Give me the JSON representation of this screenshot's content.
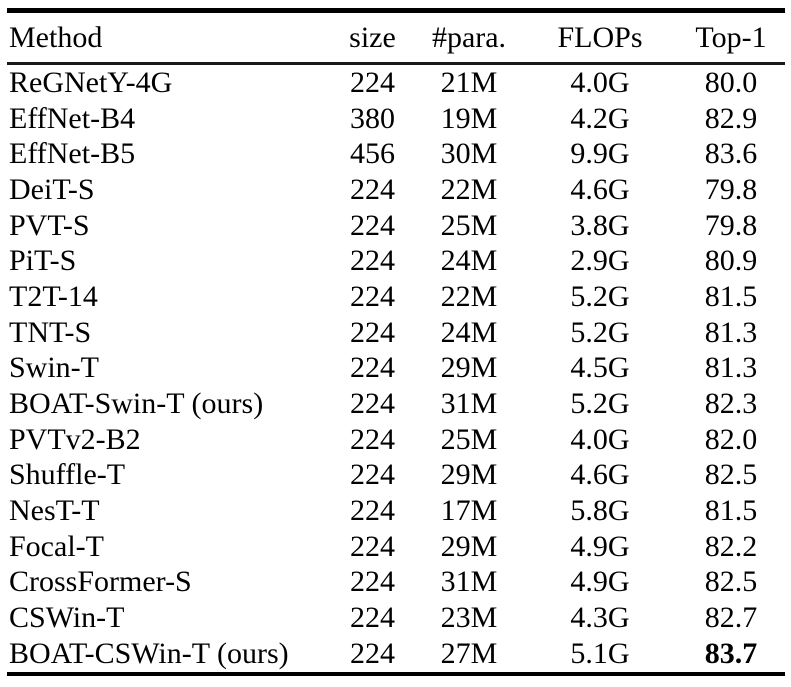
{
  "page": {
    "background_color": "#ffffff",
    "text_color": "#000000",
    "rule_color": "#000000"
  },
  "table": {
    "columns": [
      {
        "label": "Method",
        "align": "left"
      },
      {
        "label": "size",
        "align": "center"
      },
      {
        "label": "#para.",
        "align": "center"
      },
      {
        "label": "FLOPs",
        "align": "center"
      },
      {
        "label": "Top-1",
        "align": "center"
      }
    ],
    "rows": [
      {
        "method": "ReGNetY-4G",
        "size": "224",
        "params": "21M",
        "flops": "4.0G",
        "top1": "80.0",
        "top1_bold": false
      },
      {
        "method": "EffNet-B4",
        "size": "380",
        "params": "19M",
        "flops": "4.2G",
        "top1": "82.9",
        "top1_bold": false
      },
      {
        "method": "EffNet-B5",
        "size": "456",
        "params": "30M",
        "flops": "9.9G",
        "top1": "83.6",
        "top1_bold": false
      },
      {
        "method": "DeiT-S",
        "size": "224",
        "params": "22M",
        "flops": "4.6G",
        "top1": "79.8",
        "top1_bold": false
      },
      {
        "method": "PVT-S",
        "size": "224",
        "params": "25M",
        "flops": "3.8G",
        "top1": "79.8",
        "top1_bold": false
      },
      {
        "method": "PiT-S",
        "size": "224",
        "params": "24M",
        "flops": "2.9G",
        "top1": "80.9",
        "top1_bold": false
      },
      {
        "method": "T2T-14",
        "size": "224",
        "params": "22M",
        "flops": "5.2G",
        "top1": "81.5",
        "top1_bold": false
      },
      {
        "method": "TNT-S",
        "size": "224",
        "params": "24M",
        "flops": "5.2G",
        "top1": "81.3",
        "top1_bold": false
      },
      {
        "method": "Swin-T",
        "size": "224",
        "params": "29M",
        "flops": "4.5G",
        "top1": "81.3",
        "top1_bold": false
      },
      {
        "method": "BOAT-Swin-T (ours)",
        "size": "224",
        "params": "31M",
        "flops": "5.2G",
        "top1": "82.3",
        "top1_bold": false
      },
      {
        "method": "PVTv2-B2",
        "size": "224",
        "params": "25M",
        "flops": "4.0G",
        "top1": "82.0",
        "top1_bold": false
      },
      {
        "method": "Shuffle-T",
        "size": "224",
        "params": "29M",
        "flops": "4.6G",
        "top1": "82.5",
        "top1_bold": false
      },
      {
        "method": "NesT-T",
        "size": "224",
        "params": "17M",
        "flops": "5.8G",
        "top1": "81.5",
        "top1_bold": false
      },
      {
        "method": "Focal-T",
        "size": "224",
        "params": "29M",
        "flops": "4.9G",
        "top1": "82.2",
        "top1_bold": false
      },
      {
        "method": "CrossFormer-S",
        "size": "224",
        "params": "31M",
        "flops": "4.9G",
        "top1": "82.5",
        "top1_bold": false
      },
      {
        "method": "CSWin-T",
        "size": "224",
        "params": "23M",
        "flops": "4.3G",
        "top1": "82.7",
        "top1_bold": false
      },
      {
        "method": "BOAT-CSWin-T (ours)",
        "size": "224",
        "params": "27M",
        "flops": "5.1G",
        "top1": "83.7",
        "top1_bold": true
      }
    ]
  }
}
